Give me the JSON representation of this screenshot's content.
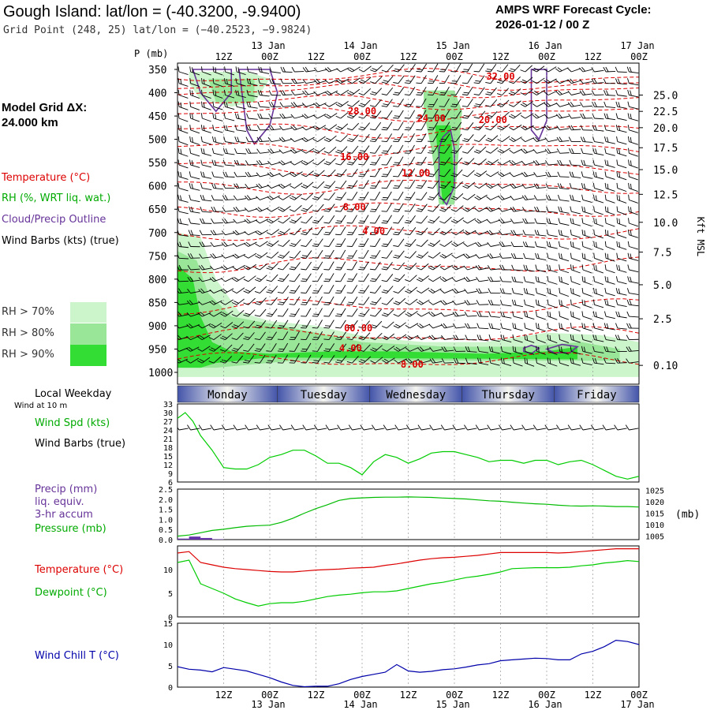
{
  "header": {
    "title": "Gough Island:  lat/lon = (-40.3200, -9.9400)",
    "grid_point": "Grid Point (248, 25) lat/lon = (−40.2523, −9.9824)",
    "cycle_line1": "AMPS WRF Forecast Cycle:",
    "cycle_line2": "2026-01-12 / 00  Z"
  },
  "left_panel": {
    "model_grid_line1": "Model Grid ΔX:",
    "model_grid_line2": " 24.000 km",
    "legend_temperature": "Temperature (°C)",
    "legend_rh": "RH (%, WRT liq. wat.)",
    "legend_cloud": "Cloud/Precip Outline",
    "legend_wind": "Wind Barbs (kts) (true)",
    "rh_levels": [
      "RH > 70%",
      "RH > 80%",
      "RH > 90%"
    ],
    "rh_colors": [
      "#ccf5cc",
      "#99e699",
      "#33dd33"
    ],
    "local_weekday": "Local Weekday",
    "wind_at_10m": "Wind at 10 m",
    "wind_spd": "Wind Spd (kts)",
    "wind_barbs": "Wind Barbs (true)",
    "precip_l1": "Precip (mm)",
    "precip_l2": "liq. equiv.",
    "precip_l3": "3-hr accum",
    "pressure": "Pressure (mb)",
    "temperature": "Temperature (°C)",
    "dewpoint": "Dewpoint (°C)",
    "wind_chill": "Wind Chill T (°C)"
  },
  "colors": {
    "temperature": "#dd0000",
    "dewpoint": "#00cc00",
    "pressure": "#00bb00",
    "wind_speed": "#00cc00",
    "precip": "#6633aa",
    "wind_chill": "#0000aa",
    "cloud_outline": "#663399",
    "day_bar": "#4455aa"
  },
  "chart_data": [
    {
      "type": "heatmap",
      "panel": "cross-section",
      "p_label": "P (mb)",
      "right_axis_label": "Kft MSL",
      "time_ticks": [
        "12Z",
        "00Z",
        "12Z",
        "00Z",
        "12Z",
        "00Z",
        "12Z",
        "00Z",
        "12Z",
        "00Z"
      ],
      "date_labels": [
        "13 Jan",
        "14 Jan",
        "15 Jan",
        "16 Jan",
        "17 Jan"
      ],
      "pressure_ticks": [
        350,
        400,
        450,
        500,
        550,
        600,
        650,
        700,
        750,
        800,
        850,
        900,
        950,
        1000
      ],
      "height_ticks": [
        "25.0",
        "22.5",
        "20.0",
        "17.5",
        "15.0",
        "12.5",
        "10.0",
        "7.5",
        "5.0",
        "2.5",
        "0.10"
      ],
      "height_tick_pressures": [
        405,
        440,
        475,
        518,
        565,
        618,
        678,
        742,
        812,
        885,
        985
      ],
      "temp_contour_labels": [
        {
          "text": "32.00",
          "t": 84,
          "p": 365
        },
        {
          "text": "28.00",
          "t": 48,
          "p": 440
        },
        {
          "text": "24.00",
          "t": 66,
          "p": 455
        },
        {
          "text": "20.00",
          "t": 82,
          "p": 458
        },
        {
          "text": "16.00",
          "t": 46,
          "p": 538
        },
        {
          "text": "12.00",
          "t": 62,
          "p": 573
        },
        {
          "text": "8.00",
          "t": 46,
          "p": 645
        },
        {
          "text": "4.00",
          "t": 51,
          "p": 697
        },
        {
          "text": "00.00",
          "t": 47,
          "p": 905
        },
        {
          "text": "4.00",
          "t": 45,
          "p": 948
        },
        {
          "text": "8.00",
          "t": 61,
          "p": 983
        }
      ],
      "time_range_hours": [
        0,
        120
      ]
    },
    {
      "type": "table",
      "panel": "local-weekday",
      "days": [
        "Monday",
        "Tuesday",
        "Wednesday",
        "Thursday",
        "Friday"
      ],
      "day_bounds_hours": [
        0,
        26,
        50,
        74,
        98,
        120
      ]
    },
    {
      "type": "line",
      "panel": "wind-speed",
      "y_ticks": [
        6,
        9,
        12,
        15,
        18,
        21,
        24,
        27,
        30,
        33
      ],
      "ylim": [
        6,
        33
      ],
      "x_hours": [
        0,
        2,
        4,
        6,
        9,
        12,
        15,
        18,
        21,
        24,
        27,
        30,
        33,
        36,
        39,
        42,
        45,
        48,
        51,
        54,
        57,
        60,
        63,
        66,
        69,
        72,
        75,
        78,
        81,
        84,
        87,
        90,
        93,
        96,
        99,
        102,
        105,
        108,
        111,
        114,
        117,
        120
      ],
      "series": [
        {
          "values": [
            28,
            30,
            27,
            22,
            17,
            11,
            10.5,
            10.5,
            12,
            14.5,
            15.5,
            17,
            17,
            15,
            12.5,
            12.5,
            11,
            8.5,
            13,
            15.5,
            14.5,
            12.5,
            14,
            16,
            16.5,
            16.5,
            15.5,
            14.5,
            13,
            13.5,
            13.5,
            12.5,
            13.5,
            13.5,
            12,
            13,
            13.5,
            12,
            10,
            8,
            7,
            8
          ]
        }
      ]
    },
    {
      "type": "line",
      "panel": "precip-pressure",
      "y_ticks_left": [
        "0.0",
        "0.5",
        "1.0",
        "1.5",
        "2.0",
        "2.5"
      ],
      "ylim_left": [
        0,
        2.5
      ],
      "y_ticks_right": [
        1005,
        1010,
        1015,
        1020,
        1025
      ],
      "ylim_right": [
        1003.5,
        1025.5
      ],
      "right_axis_label": "(mb)",
      "x_hours": [
        0,
        3,
        6,
        9,
        12,
        15,
        18,
        21,
        24,
        27,
        30,
        33,
        36,
        39,
        42,
        45,
        48,
        51,
        54,
        57,
        60,
        63,
        66,
        69,
        72,
        75,
        78,
        81,
        84,
        87,
        90,
        93,
        96,
        99,
        102,
        105,
        108,
        111,
        114,
        117,
        120
      ],
      "series": [
        {
          "values": [
            1005,
            1005.5,
            1006.5,
            1007.5,
            1008,
            1008.7,
            1009.3,
            1009.6,
            1009.8,
            1011,
            1012.8,
            1015,
            1017,
            1018.7,
            1020.6,
            1021.4,
            1021.7,
            1021.9,
            1022.0,
            1022.0,
            1022.1,
            1022.0,
            1021.9,
            1021.6,
            1021.4,
            1021.2,
            1020.8,
            1020.4,
            1020.2,
            1019.8,
            1019.4,
            1019.1,
            1018.9,
            1018.5,
            1018.2,
            1018.1,
            1018.2,
            1018.1,
            1017.9,
            1017.9,
            1017.7
          ]
        },
        {
          "values": [
            0.05,
            0.15,
            0.08,
            0.02,
            0,
            0,
            0,
            0,
            0,
            0,
            0,
            0,
            0,
            0,
            0,
            0,
            0,
            0,
            0,
            0,
            0,
            0,
            0,
            0,
            0,
            0,
            0,
            0,
            0,
            0,
            0,
            0,
            0,
            0,
            0,
            0,
            0,
            0,
            0,
            0,
            0
          ]
        }
      ]
    },
    {
      "type": "line",
      "panel": "temp-dewpoint",
      "y_ticks": [
        0,
        5,
        10
      ],
      "ylim": [
        0,
        15
      ],
      "x_hours": [
        0,
        3,
        6,
        9,
        12,
        15,
        18,
        21,
        24,
        27,
        30,
        33,
        36,
        39,
        42,
        45,
        48,
        51,
        54,
        57,
        60,
        63,
        66,
        69,
        72,
        75,
        78,
        81,
        84,
        87,
        90,
        93,
        96,
        99,
        102,
        105,
        108,
        111,
        114,
        117,
        120
      ],
      "series": [
        {
          "values": [
            13.5,
            13.8,
            11.5,
            11,
            10.5,
            10.2,
            10,
            9.8,
            9.6,
            9.5,
            9.5,
            9.7,
            9.9,
            10,
            10.1,
            10.3,
            10.4,
            10.5,
            10.9,
            11.2,
            11.6,
            12,
            12.3,
            12.5,
            12.6,
            12.8,
            13,
            13.3,
            13.6,
            13.6,
            13.6,
            13.6,
            13.6,
            13.5,
            13.6,
            13.8,
            14,
            14.2,
            14.4,
            14.4,
            14.4
          ]
        },
        {
          "values": [
            11.5,
            12,
            7,
            6,
            5,
            3.8,
            3,
            2.3,
            2.8,
            3,
            3,
            3.3,
            3.8,
            4.3,
            4.6,
            4.8,
            5.1,
            5.3,
            5.3,
            5.5,
            6,
            6.5,
            7,
            7.3,
            7.8,
            8.3,
            8.6,
            9,
            9.5,
            10.2,
            10.3,
            10.4,
            10.4,
            10.4,
            10.5,
            10.8,
            11,
            11.4,
            11.6,
            11.9,
            11.7
          ]
        }
      ]
    },
    {
      "type": "line",
      "panel": "wind-chill",
      "y_ticks": [
        0,
        5,
        10,
        15
      ],
      "ylim": [
        0,
        15
      ],
      "x_hours": [
        0,
        3,
        6,
        9,
        12,
        15,
        18,
        21,
        24,
        27,
        30,
        33,
        36,
        39,
        42,
        45,
        48,
        51,
        54,
        57,
        60,
        63,
        66,
        69,
        72,
        75,
        78,
        81,
        84,
        87,
        90,
        93,
        96,
        99,
        102,
        105,
        108,
        111,
        114,
        117,
        120
      ],
      "series": [
        {
          "values": [
            4.8,
            4.2,
            4,
            3.6,
            4.6,
            4.2,
            3.8,
            3,
            2.2,
            1.2,
            0.4,
            0.1,
            0.2,
            0.2,
            0.8,
            1.8,
            2.5,
            3,
            3.5,
            5.3,
            3.8,
            3.5,
            3.7,
            4.1,
            4.3,
            4.7,
            5.2,
            5.5,
            6.2,
            6.4,
            6.6,
            6.8,
            6.7,
            6.4,
            6.4,
            7.8,
            8.4,
            9.5,
            11,
            10.7,
            10
          ]
        }
      ]
    }
  ]
}
